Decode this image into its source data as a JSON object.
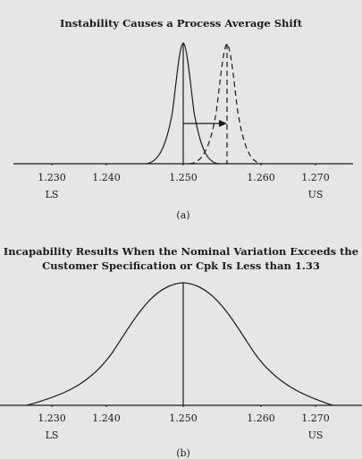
{
  "panel_a": {
    "title": "Instability Causes a Process Average Shift",
    "caption": "(a)",
    "ticks": [
      "1.230",
      "1.240",
      "1.250",
      "1.260",
      "1.270"
    ],
    "lower_spec": "LS",
    "upper_spec": "US"
  },
  "panel_b": {
    "title_line1": "Incapability Results When the Nominal Variation Exceeds the",
    "title_line2": "Customer Specification or Cpk Is Less than 1.33",
    "caption": "(b)",
    "ticks": [
      "1.230",
      "1.240",
      "1.250",
      "1.260",
      "1.270"
    ],
    "lower_spec": "LS",
    "upper_spec": "US"
  },
  "colors": {
    "background": "#e6e6e6",
    "ink": "#1a1a1a"
  }
}
